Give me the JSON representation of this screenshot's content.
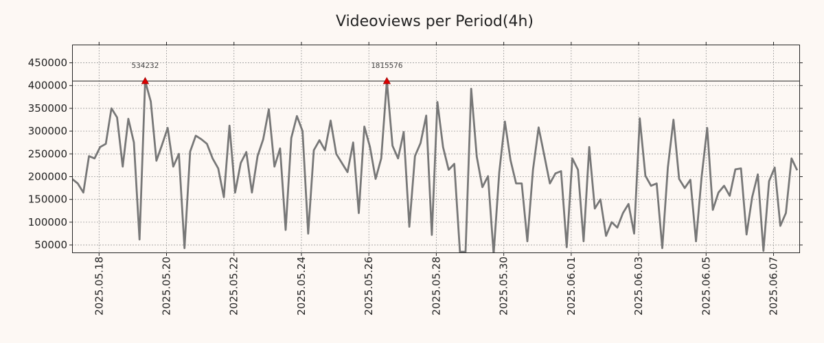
{
  "chart_data": {
    "type": "line",
    "title": "Videoviews per Period(4h)",
    "xlabel": "",
    "ylabel": "",
    "grid": true,
    "x_range": [
      0,
      129.5
    ],
    "ylim": [
      32000,
      490000
    ],
    "y_ticks": [
      50000,
      100000,
      150000,
      200000,
      250000,
      300000,
      350000,
      400000,
      450000
    ],
    "y_tick_labels": [
      "50000",
      "100000",
      "150000",
      "200000",
      "250000",
      "300000",
      "350000",
      "400000",
      "450000"
    ],
    "x_ticks": [
      {
        "index": 4.8,
        "label": "2025.05.18"
      },
      {
        "index": 16.8,
        "label": "2025.05.20"
      },
      {
        "index": 28.8,
        "label": "2025.05.22"
      },
      {
        "index": 40.8,
        "label": "2025.05.24"
      },
      {
        "index": 52.8,
        "label": "2025.05.26"
      },
      {
        "index": 64.8,
        "label": "2025.05.28"
      },
      {
        "index": 76.8,
        "label": "2025.05.30"
      },
      {
        "index": 88.8,
        "label": "2025.06.01"
      },
      {
        "index": 100.8,
        "label": "2025.06.03"
      },
      {
        "index": 112.8,
        "label": "2025.06.05"
      },
      {
        "index": 124.8,
        "label": "2025.06.07"
      }
    ],
    "threshold": 410000,
    "series": [
      {
        "name": "Videoviews",
        "color": "#777777",
        "values": [
          195000,
          185000,
          165000,
          245000,
          240000,
          265000,
          272000,
          350000,
          330000,
          222000,
          327000,
          275000,
          62000,
          410000,
          365000,
          235000,
          270000,
          307000,
          222000,
          250000,
          43000,
          255000,
          290000,
          282000,
          272000,
          240000,
          218000,
          155000,
          312000,
          165000,
          230000,
          254000,
          165000,
          245000,
          282000,
          348000,
          222000,
          262000,
          83000,
          285000,
          333000,
          300000,
          75000,
          258000,
          280000,
          258000,
          323000,
          250000,
          230000,
          210000,
          275000,
          120000,
          310000,
          265000,
          195000,
          240000,
          410000,
          268000,
          240000,
          298000,
          90000,
          245000,
          274000,
          334000,
          72000,
          364000,
          265000,
          215000,
          228000,
          35000,
          35000,
          393000,
          244000,
          177000,
          201000,
          30000,
          210000,
          321000,
          236000,
          185000,
          185000,
          58000,
          215000,
          308000,
          247000,
          185000,
          207000,
          212000,
          45000,
          240000,
          215000,
          58000,
          265000,
          130000,
          150000,
          70000,
          100000,
          88000,
          120000,
          140000,
          75000,
          328000,
          202000,
          180000,
          185000,
          43000,
          220000,
          325000,
          195000,
          175000,
          193000,
          58000,
          200000,
          307000,
          127000,
          165000,
          180000,
          158000,
          216000,
          218000,
          73000,
          155000,
          205000,
          37000,
          190000,
          220000,
          92000,
          120000,
          240000,
          214000
        ]
      }
    ],
    "peaks": [
      {
        "index": 13,
        "value": 410000,
        "label": "534232",
        "color": "#dd0000"
      },
      {
        "index": 56,
        "value": 410000,
        "label": "1815576",
        "color": "#dd0000"
      }
    ]
  }
}
